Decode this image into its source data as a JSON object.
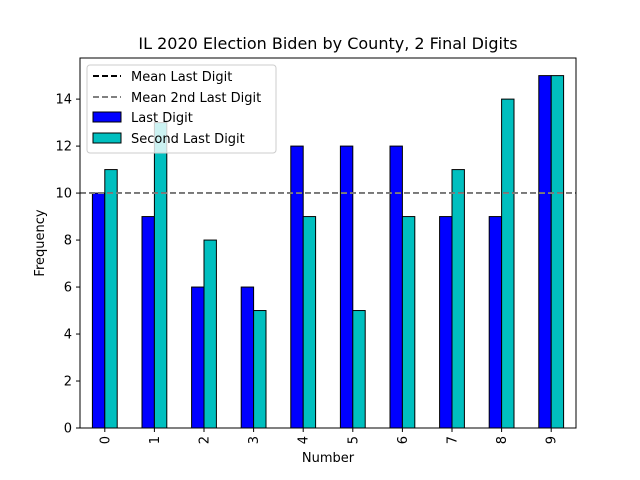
{
  "chart_data": {
    "type": "bar",
    "title": "IL 2020 Election Biden by County, 2 Final Digits",
    "xlabel": "Number",
    "ylabel": "Frequency",
    "categories": [
      "0",
      "1",
      "2",
      "3",
      "4",
      "5",
      "6",
      "7",
      "8",
      "9"
    ],
    "series": [
      {
        "name": "Last Digit",
        "values": [
          10,
          9,
          6,
          6,
          12,
          12,
          12,
          9,
          9,
          15
        ],
        "color": "#0000ff"
      },
      {
        "name": "Second Last Digit",
        "values": [
          11,
          13,
          8,
          5,
          9,
          5,
          9,
          11,
          14,
          15
        ],
        "color": "#00bfbf"
      }
    ],
    "reference_lines": [
      {
        "name": "Mean Last Digit",
        "value": 10,
        "color": "#000000",
        "style": "dashed"
      },
      {
        "name": "Mean 2nd Last Digit",
        "value": 10,
        "color": "#808080",
        "style": "dashed"
      }
    ],
    "ylim": [
      0,
      15.75
    ],
    "yticks": [
      0,
      2,
      4,
      6,
      8,
      10,
      12,
      14
    ],
    "grid": false,
    "legend_position": "top-left"
  }
}
